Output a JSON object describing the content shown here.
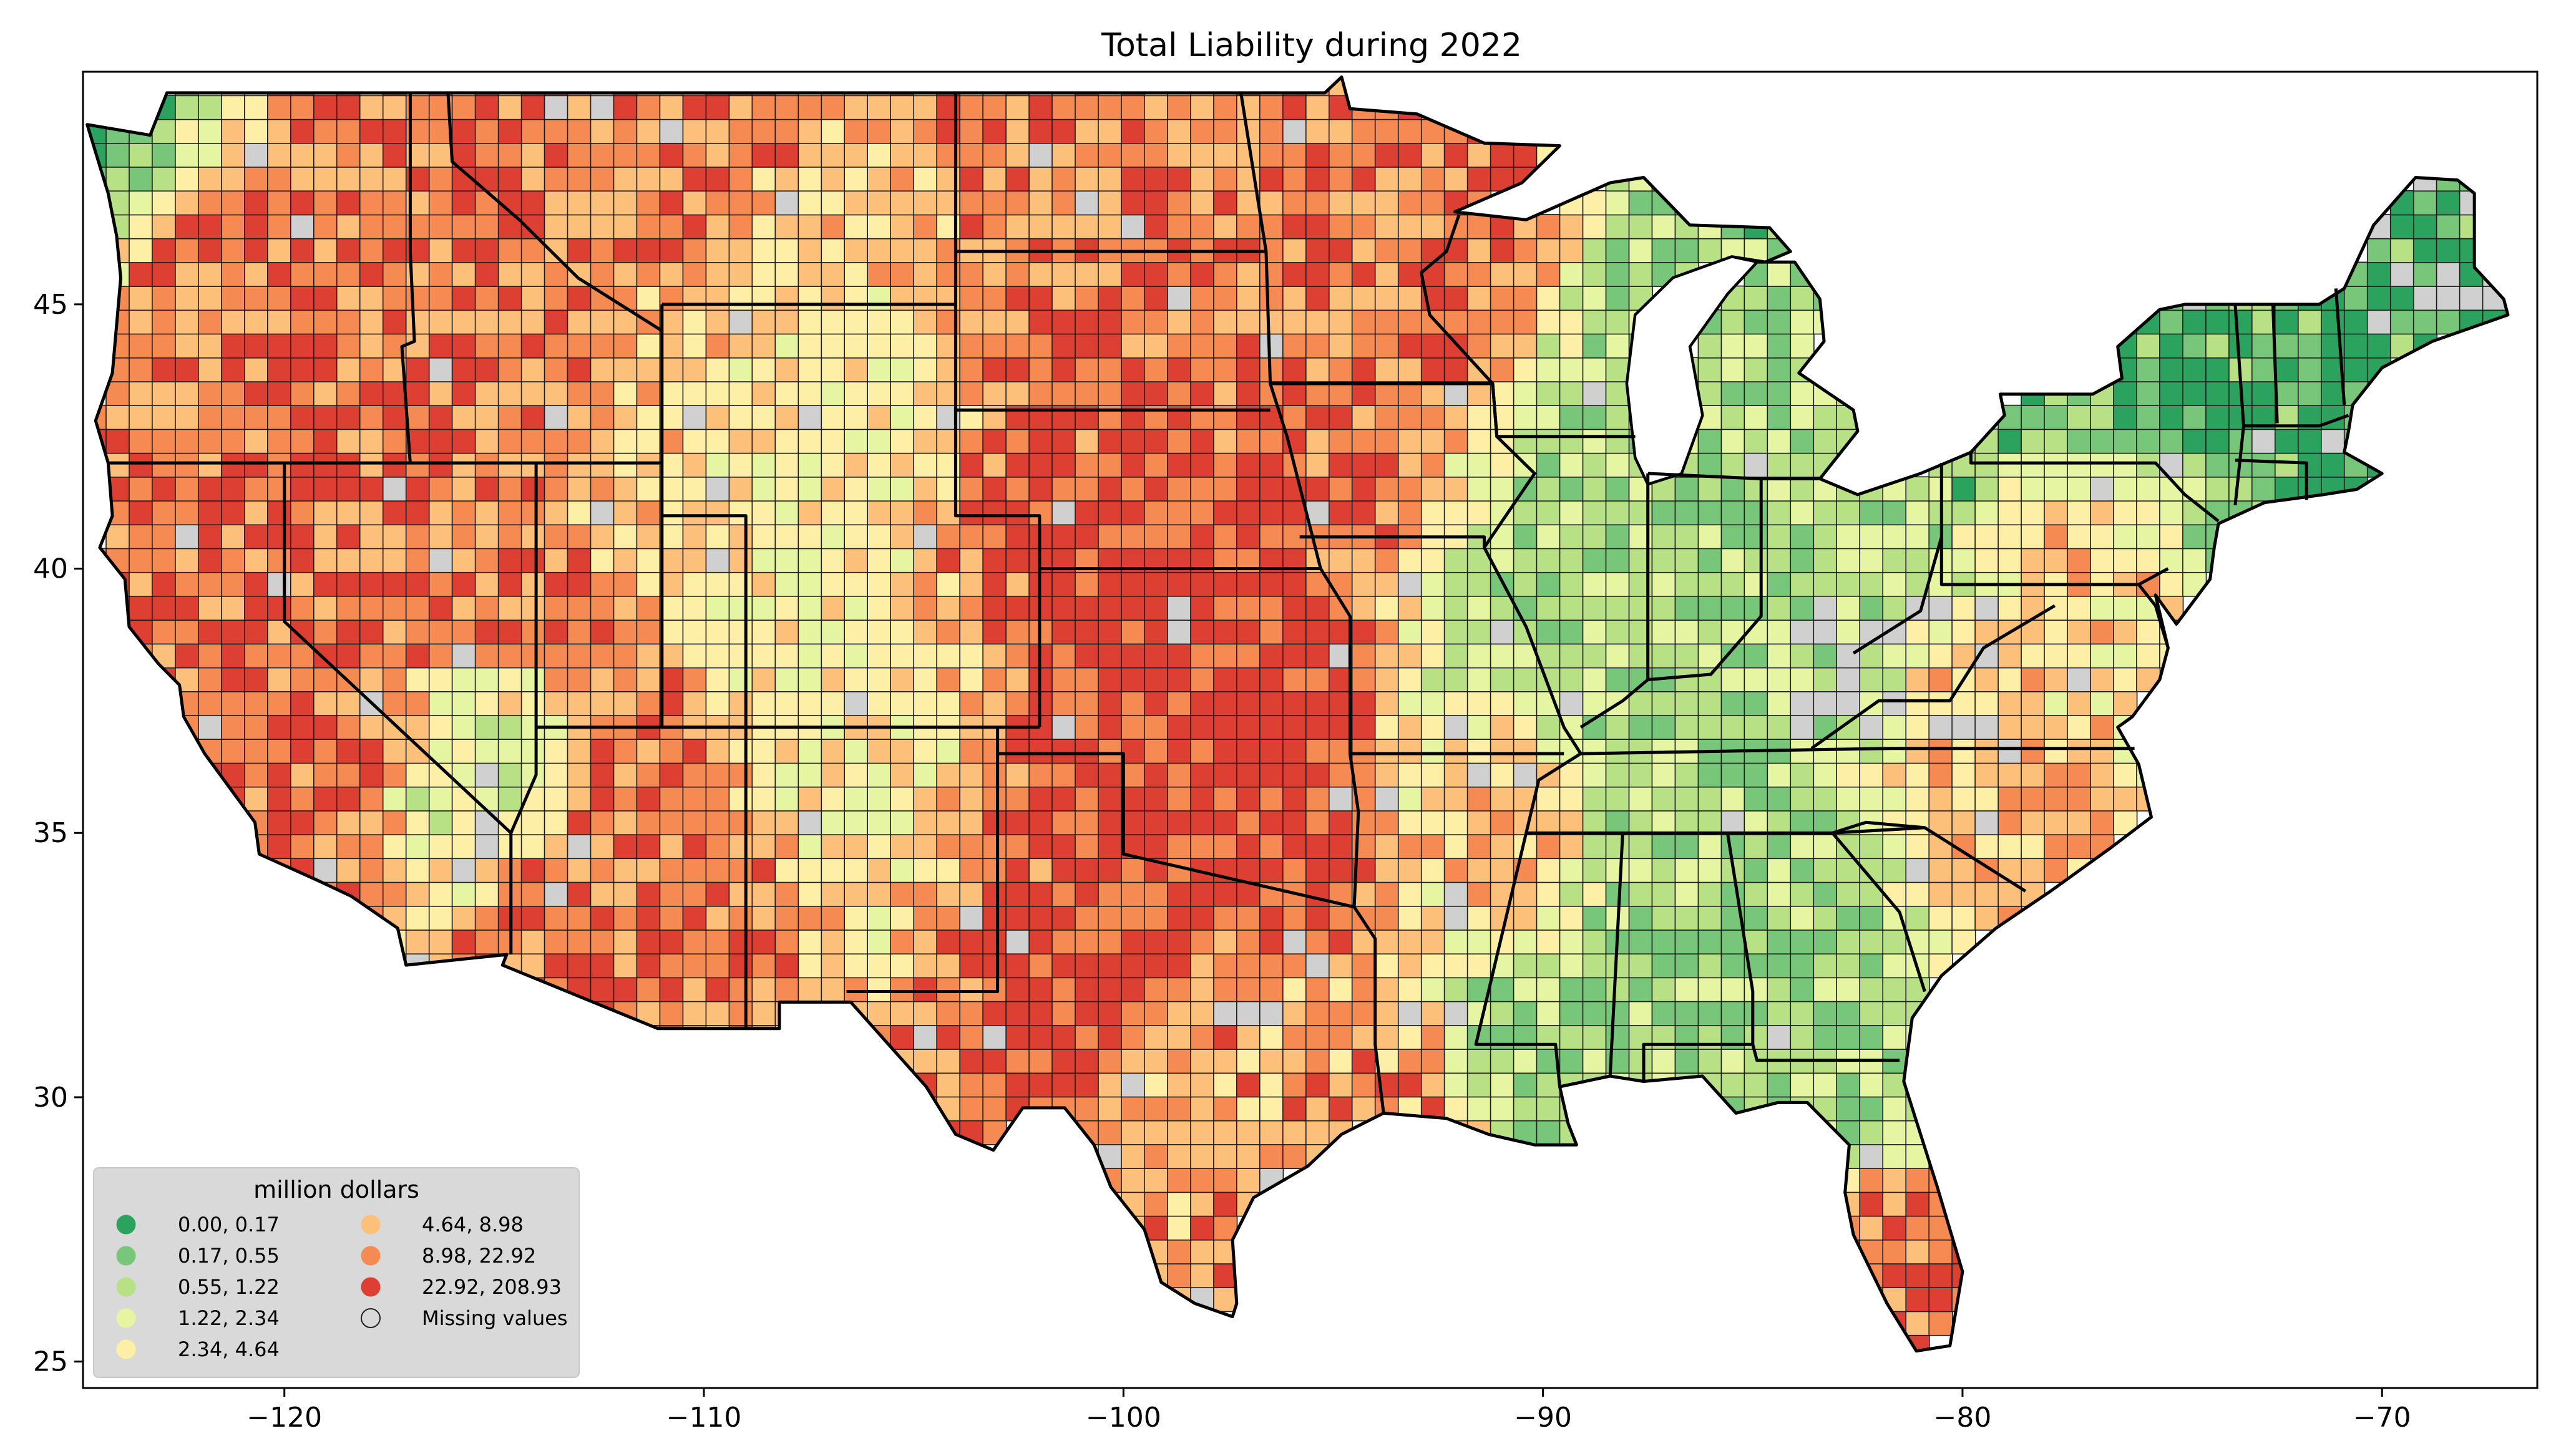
{
  "map": {
    "title": "Total Liability during 2022",
    "x_ticks": [
      "−120",
      "−110",
      "−100",
      "−90",
      "−80",
      "−70"
    ],
    "y_ticks": [
      "45",
      "40",
      "35",
      "30",
      "25"
    ],
    "x_tick_values": [
      -120,
      -110,
      -100,
      -90,
      -80,
      -70
    ],
    "y_tick_values": [
      45,
      40,
      35,
      30,
      25
    ],
    "xlim": [
      -124.8,
      -66.3
    ],
    "ylim": [
      24.5,
      49.4
    ]
  },
  "legend": {
    "title": "million dollars",
    "placement": "lower-left",
    "entries": [
      {
        "label": "0.00,   0.17",
        "color": "#2ca25f"
      },
      {
        "label": "0.17,   0.55",
        "color": "#78c679"
      },
      {
        "label": "0.55,   1.22",
        "color": "#b8e186"
      },
      {
        "label": "1.22,   2.34",
        "color": "#e6f5a1"
      },
      {
        "label": "2.34,   4.64",
        "color": "#fdf0a6"
      },
      {
        "label": "4.64,   8.98",
        "color": "#fdc07a"
      },
      {
        "label": "8.98,  22.92",
        "color": "#f58a53"
      },
      {
        "label": "22.92, 208.93",
        "color": "#dd4032"
      },
      {
        "label": "Missing values",
        "color": "#d0d0d0"
      }
    ]
  },
  "colors": {
    "background": "#ffffff",
    "legend_box": "#d9d9d9",
    "missing": "#d0d0d0",
    "border": "#000000"
  }
}
